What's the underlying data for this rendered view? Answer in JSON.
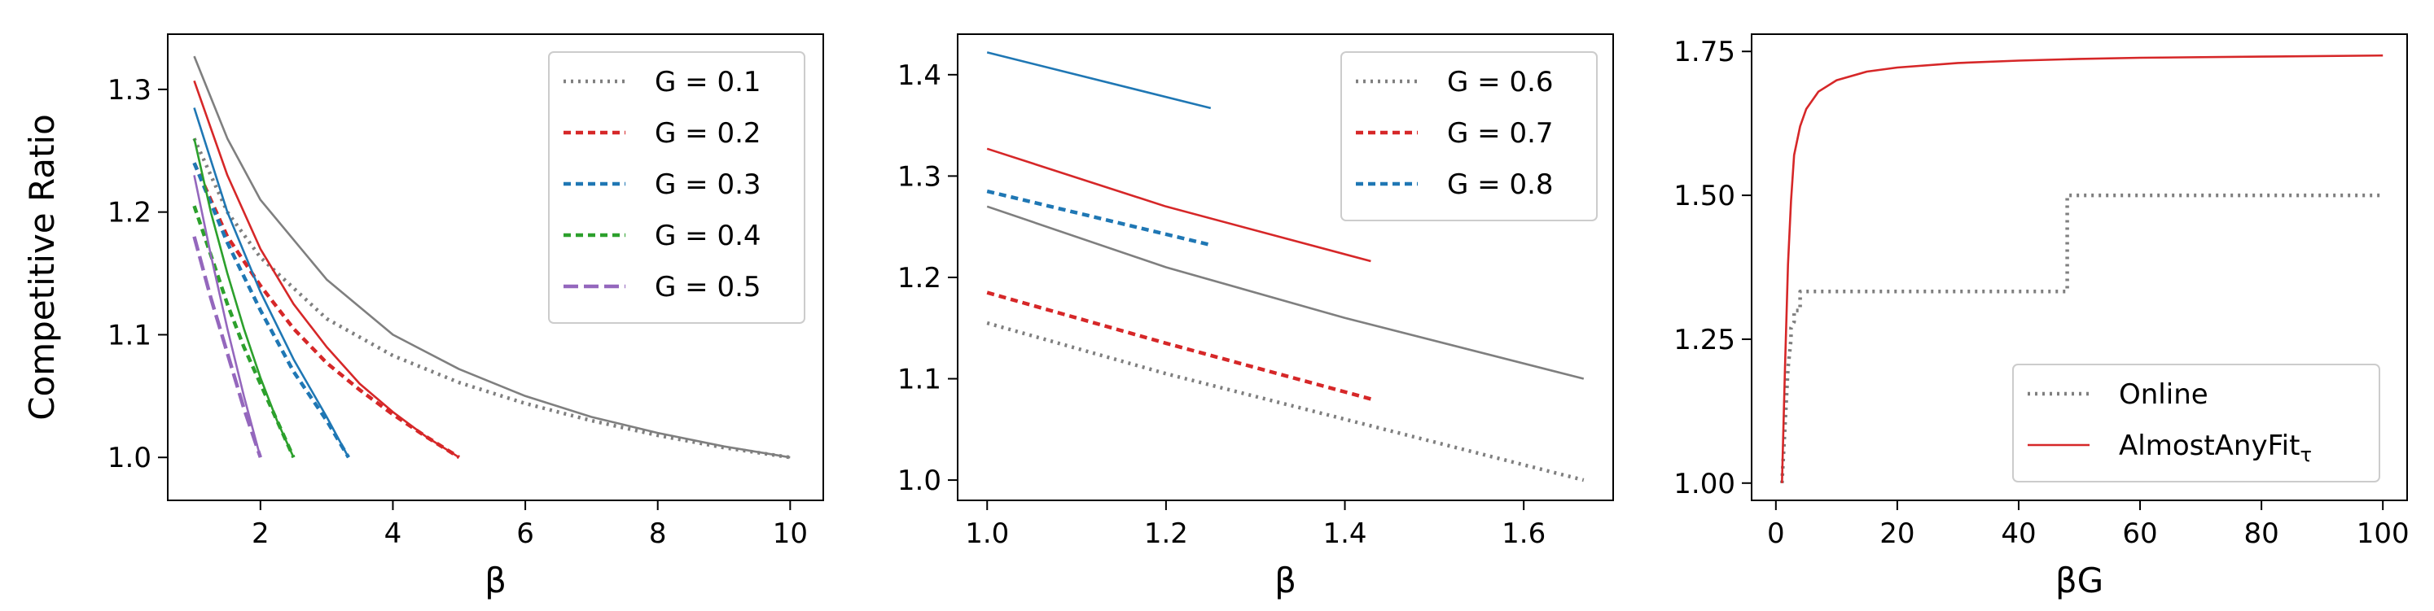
{
  "chart_data": [
    {
      "type": "line",
      "title": "",
      "xlabel": "β",
      "ylabel": "Competitive Ratio",
      "xlim": [
        0.6,
        10.5
      ],
      "ylim": [
        0.965,
        1.345
      ],
      "xticks": [
        "2",
        "4",
        "6",
        "8",
        "10"
      ],
      "xtick_values": [
        2,
        4,
        6,
        8,
        10
      ],
      "yticks": [
        "1.0",
        "1.1",
        "1.2",
        "1.3"
      ],
      "ytick_values": [
        1.0,
        1.1,
        1.2,
        1.3
      ],
      "legend": {
        "position": "upper right"
      },
      "series": [
        {
          "name": "G = 0.1",
          "color": "#7f7f7f",
          "style": "dotted",
          "x": [
            1,
            1.5,
            2,
            3,
            4,
            5,
            6,
            7,
            8,
            9,
            10
          ],
          "y": [
            1.26,
            1.2,
            1.163,
            1.113,
            1.083,
            1.061,
            1.044,
            1.03,
            1.018,
            1.008,
            1.0
          ]
        },
        {
          "name": "",
          "color": "#7f7f7f",
          "style": "solid",
          "x": [
            1,
            1.5,
            2,
            3,
            4,
            5,
            6,
            7,
            8,
            9,
            10
          ],
          "y": [
            1.327,
            1.26,
            1.21,
            1.145,
            1.1,
            1.072,
            1.05,
            1.033,
            1.02,
            1.009,
            1.0
          ]
        },
        {
          "name": "G = 0.2",
          "color": "#d62728",
          "style": "dashed",
          "x": [
            1,
            1.5,
            2,
            2.5,
            3,
            3.5,
            4,
            4.5,
            5
          ],
          "y": [
            1.24,
            1.18,
            1.14,
            1.105,
            1.077,
            1.055,
            1.035,
            1.017,
            1.0
          ]
        },
        {
          "name": "",
          "color": "#d62728",
          "style": "solid",
          "x": [
            1,
            1.5,
            2,
            2.5,
            3,
            3.5,
            4,
            4.5,
            5
          ],
          "y": [
            1.307,
            1.23,
            1.17,
            1.125,
            1.09,
            1.06,
            1.037,
            1.017,
            1.0
          ]
        },
        {
          "name": "G = 0.3",
          "color": "#1f77b4",
          "style": "dashed",
          "x": [
            1,
            1.5,
            2,
            2.5,
            3,
            3.33
          ],
          "y": [
            1.24,
            1.175,
            1.12,
            1.07,
            1.03,
            1.0
          ]
        },
        {
          "name": "",
          "color": "#1f77b4",
          "style": "solid",
          "x": [
            1,
            1.5,
            2,
            2.5,
            3,
            3.33
          ],
          "y": [
            1.285,
            1.2,
            1.135,
            1.08,
            1.033,
            1.0
          ]
        },
        {
          "name": "G = 0.4",
          "color": "#2ca02c",
          "style": "dashed",
          "x": [
            1,
            1.25,
            1.5,
            1.75,
            2,
            2.25,
            2.5
          ],
          "y": [
            1.205,
            1.165,
            1.125,
            1.09,
            1.06,
            1.03,
            1.0
          ]
        },
        {
          "name": "",
          "color": "#2ca02c",
          "style": "solid",
          "x": [
            1,
            1.25,
            1.5,
            1.75,
            2,
            2.25,
            2.5
          ],
          "y": [
            1.26,
            1.2,
            1.15,
            1.105,
            1.065,
            1.03,
            1.0
          ]
        },
        {
          "name": "G = 0.5",
          "color": "#9467bd",
          "style": "longdash",
          "x": [
            1,
            1.25,
            1.5,
            1.75,
            2
          ],
          "y": [
            1.18,
            1.13,
            1.085,
            1.04,
            1.0
          ]
        },
        {
          "name": "",
          "color": "#9467bd",
          "style": "solid",
          "x": [
            1,
            1.25,
            1.5,
            1.75,
            2
          ],
          "y": [
            1.23,
            1.165,
            1.105,
            1.05,
            1.0
          ]
        }
      ]
    },
    {
      "type": "line",
      "title": "",
      "xlabel": "β",
      "ylabel": "",
      "xlim": [
        0.967,
        1.7
      ],
      "ylim": [
        0.98,
        1.44
      ],
      "xticks": [
        "1.0",
        "1.2",
        "1.4",
        "1.6"
      ],
      "xtick_values": [
        1.0,
        1.2,
        1.4,
        1.6
      ],
      "yticks": [
        "1.0",
        "1.1",
        "1.2",
        "1.3",
        "1.4"
      ],
      "ytick_values": [
        1.0,
        1.1,
        1.2,
        1.3,
        1.4
      ],
      "legend": {
        "position": "upper right"
      },
      "series": [
        {
          "name": "G = 0.6",
          "color": "#7f7f7f",
          "style": "dotted",
          "x": [
            1.0,
            1.2,
            1.4,
            1.667
          ],
          "y": [
            1.155,
            1.105,
            1.06,
            1.0
          ]
        },
        {
          "name": "",
          "color": "#7f7f7f",
          "style": "solid",
          "x": [
            1.0,
            1.2,
            1.4,
            1.667
          ],
          "y": [
            1.27,
            1.21,
            1.16,
            1.1
          ]
        },
        {
          "name": "G = 0.7",
          "color": "#d62728",
          "style": "dashed",
          "x": [
            1.0,
            1.2,
            1.429
          ],
          "y": [
            1.185,
            1.135,
            1.08
          ]
        },
        {
          "name": "",
          "color": "#d62728",
          "style": "solid",
          "x": [
            1.0,
            1.2,
            1.429
          ],
          "y": [
            1.327,
            1.27,
            1.216
          ]
        },
        {
          "name": "G = 0.8",
          "color": "#1f77b4",
          "style": "dashed",
          "x": [
            1.0,
            1.25
          ],
          "y": [
            1.285,
            1.232
          ]
        },
        {
          "name": "",
          "color": "#1f77b4",
          "style": "solid",
          "x": [
            1.0,
            1.25
          ],
          "y": [
            1.422,
            1.367
          ]
        }
      ]
    },
    {
      "type": "line",
      "title": "",
      "xlabel": "βG",
      "ylabel": "",
      "xlim": [
        -4,
        104
      ],
      "ylim": [
        0.97,
        1.78
      ],
      "xticks": [
        "0",
        "20",
        "40",
        "60",
        "80",
        "100"
      ],
      "xtick_values": [
        0,
        20,
        40,
        60,
        80,
        100
      ],
      "yticks": [
        "1.00",
        "1.25",
        "1.50",
        "1.75"
      ],
      "ytick_values": [
        1.0,
        1.25,
        1.5,
        1.75
      ],
      "legend": {
        "position": "lower right"
      },
      "series": [
        {
          "name": "Online",
          "color": "#7f7f7f",
          "style": "dotted",
          "x": [
            1,
            1.5,
            2,
            2.5,
            2.5,
            3,
            3,
            4,
            4,
            48,
            48,
            100
          ],
          "y": [
            1.0,
            1.1,
            1.2,
            1.25,
            1.27,
            1.28,
            1.3,
            1.3,
            1.333,
            1.333,
            1.5,
            1.5
          ]
        },
        {
          "name": "AlmostAnyFit_τ",
          "color": "#d62728",
          "style": "solid",
          "x": [
            1,
            1.5,
            2,
            2.5,
            3,
            4,
            5,
            7,
            10,
            15,
            20,
            30,
            40,
            50,
            60,
            80,
            100
          ],
          "y": [
            1.0,
            1.2,
            1.38,
            1.49,
            1.57,
            1.62,
            1.65,
            1.68,
            1.7,
            1.715,
            1.722,
            1.73,
            1.734,
            1.737,
            1.739,
            1.741,
            1.743
          ]
        }
      ]
    }
  ]
}
